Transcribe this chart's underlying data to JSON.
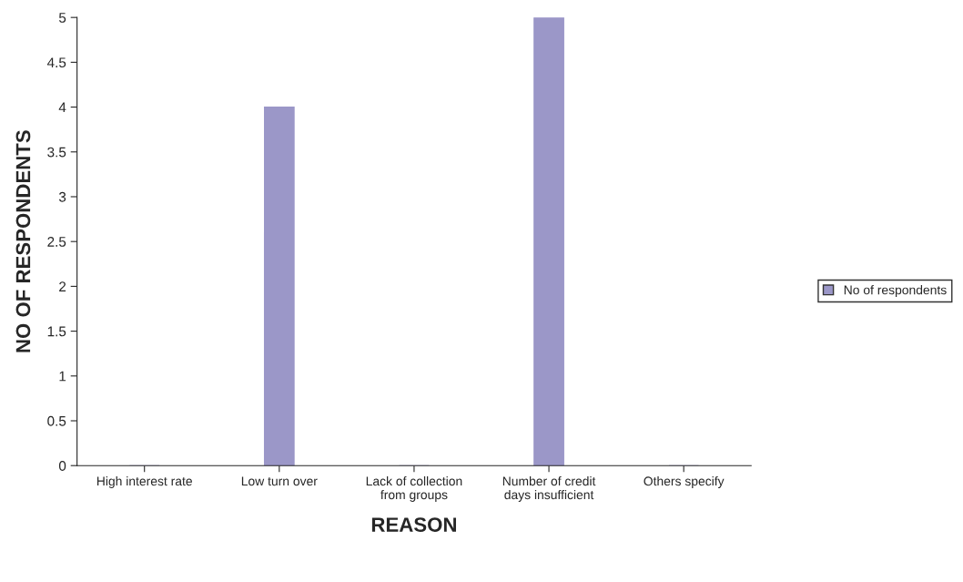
{
  "chart_data": {
    "type": "bar",
    "categories": [
      "High interest rate",
      "Low turn over",
      "Lack of collection\nfrom groups",
      "Number of credit\ndays insufficient",
      "Others specify"
    ],
    "series": [
      {
        "name": "No of respondents",
        "color": "#9b97c8",
        "values": [
          0,
          4,
          0,
          5,
          0
        ]
      }
    ],
    "xlabel": "REASON",
    "ylabel": "NO OF RESPONDENTS",
    "ylim": [
      0,
      5
    ],
    "yticks": [
      0,
      0.5,
      1,
      1.5,
      2,
      2.5,
      3,
      3.5,
      4,
      4.5,
      5
    ],
    "grid": false,
    "legend": "right"
  }
}
